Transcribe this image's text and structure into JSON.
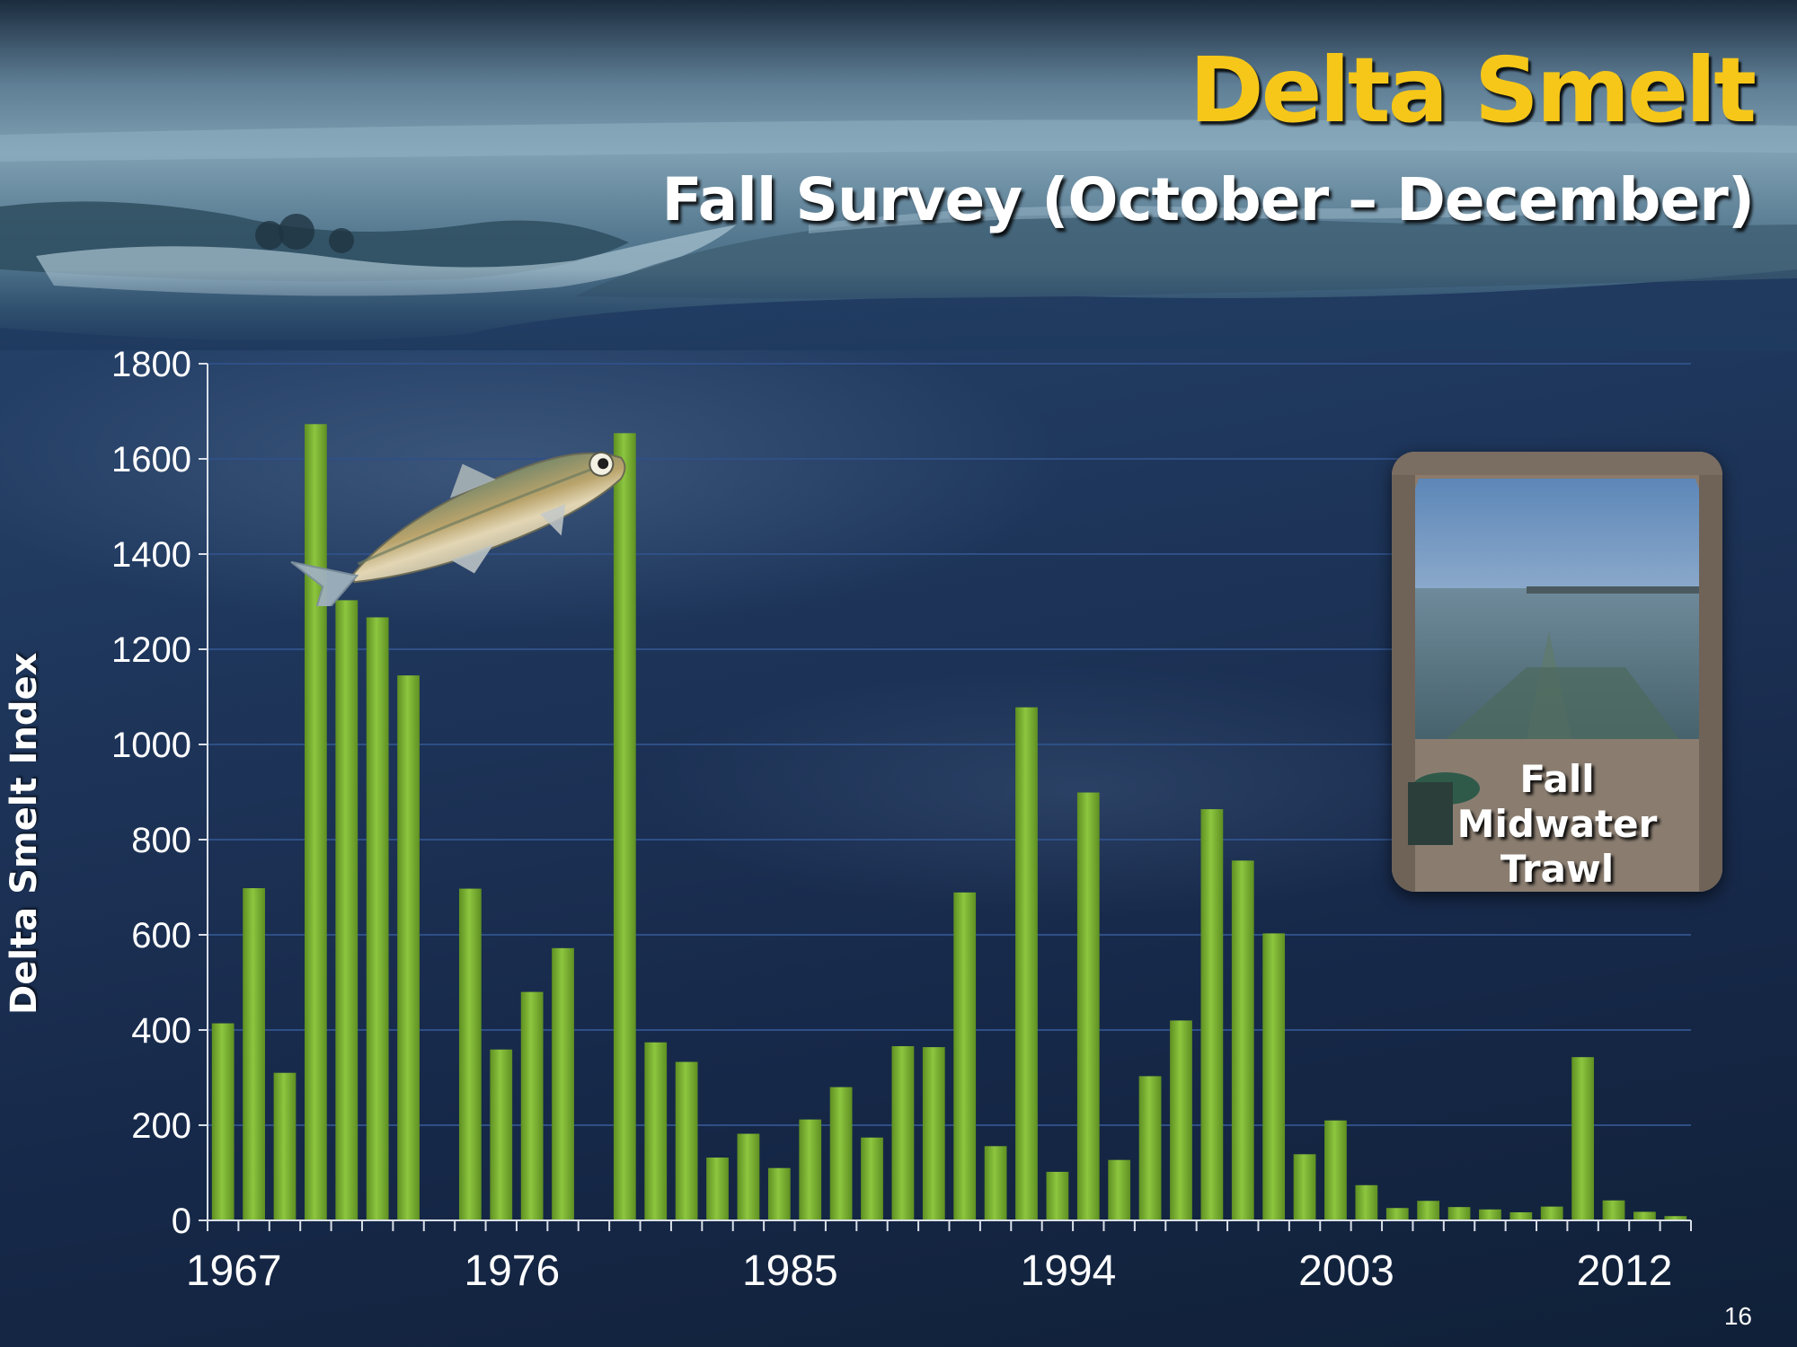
{
  "slide": {
    "title": "Delta Smelt",
    "subtitle": "Fall Survey (October – December)",
    "page_number": "16",
    "trawl_caption": "Fall\nMidwater\nTrawl"
  },
  "colors": {
    "bar": "#8dc63f",
    "bar_dark": "#5e8f22",
    "title": "#f6c719",
    "gridline": "#2f4f86",
    "axis": "#d9dfe8"
  },
  "icons": [
    "delta-smelt-fish-icon",
    "midwater-trawl-photo"
  ],
  "chart_data": {
    "type": "bar",
    "title": "",
    "xlabel": "",
    "ylabel": "Delta Smelt Index",
    "ylim": [
      0,
      1800
    ],
    "yticks": [
      0,
      200,
      400,
      600,
      800,
      1000,
      1200,
      1400,
      1600,
      1800
    ],
    "x_tick_labels": [
      "1967",
      "1976",
      "1985",
      "1994",
      "2003",
      "2012"
    ],
    "grid": "horizontal",
    "legend": "none",
    "x": [
      1967,
      1968,
      1969,
      1970,
      1971,
      1972,
      1973,
      1974,
      1975,
      1976,
      1977,
      1978,
      1979,
      1980,
      1981,
      1982,
      1983,
      1984,
      1985,
      1986,
      1987,
      1988,
      1989,
      1990,
      1991,
      1992,
      1993,
      1994,
      1995,
      1996,
      1997,
      1998,
      1999,
      2000,
      2001,
      2002,
      2003,
      2004,
      2005,
      2006,
      2007,
      2008,
      2009,
      2010,
      2011,
      2012,
      2013,
      2014
    ],
    "values": [
      414,
      698,
      310,
      1673,
      1303,
      1267,
      1145,
      null,
      697,
      359,
      480,
      572,
      null,
      1654,
      374,
      333,
      132,
      182,
      110,
      212,
      280,
      174,
      366,
      364,
      689,
      156,
      1078,
      102,
      899,
      127,
      303,
      420,
      864,
      756,
      603,
      139,
      210,
      74,
      26,
      41,
      28,
      23,
      17,
      29,
      343,
      42,
      18,
      9
    ]
  }
}
